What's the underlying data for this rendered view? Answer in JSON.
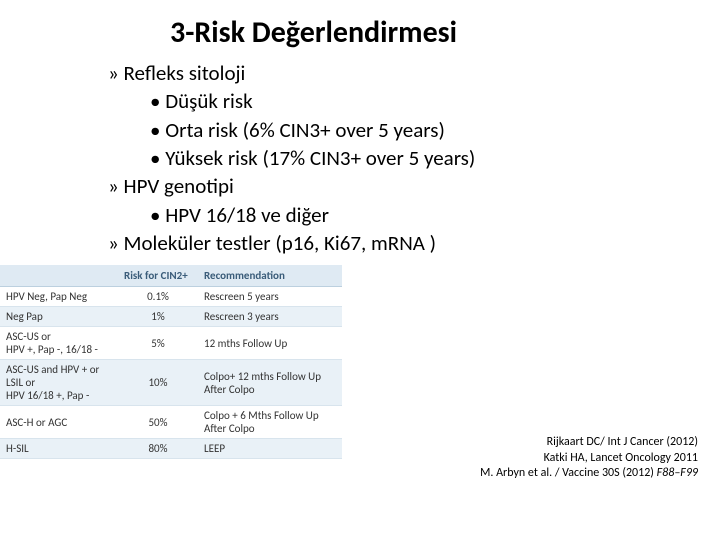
{
  "title": "3-Risk Değerlendirmesi",
  "bullets": {
    "a": "Refleks sitoloji",
    "a1": "Düşük risk",
    "a2": "Orta risk (6% CIN3+ over 5 years)",
    "a3": "Yüksek risk (17% CIN3+ over 5 years)",
    "b": "HPV genotipi",
    "b1": "HPV 16/18 ve diğer",
    "c": "Moleküler testler (p16, Ki67, mRNA )"
  },
  "table": {
    "headers": {
      "h1": "",
      "h2": "Risk for CIN2+",
      "h3": "Recommendation"
    },
    "rows": [
      {
        "c1": "HPV Neg, Pap Neg",
        "c2": "0.1%",
        "c3": "Rescreen 5 years"
      },
      {
        "c1": "Neg Pap",
        "c2": "1%",
        "c3": "Rescreen 3 years"
      },
      {
        "c1": "ASC-US or\nHPV +, Pap -, 16/18 -",
        "c2": "5%",
        "c3": "12 mths Follow Up"
      },
      {
        "c1": "ASC-US and HPV + or\nLSIL or\nHPV 16/18 +, Pap -",
        "c2": "10%",
        "c3": "Colpo+ 12 mths Follow Up After Colpo"
      },
      {
        "c1": "ASC-H or AGC",
        "c2": "50%",
        "c3": "Colpo + 6 Mths Follow Up After Colpo"
      },
      {
        "c1": "H-SIL",
        "c2": "80%",
        "c3": "LEEP"
      }
    ]
  },
  "refs": {
    "r1a": "Rijkaart DC/ Int J Cancer (2012)",
    "r2a": "Katki HA, Lancet Oncology 2011",
    "r3a": "M. Arbyn et al. / Vaccine 30S (2012) ",
    "r3b": "F88–F99"
  }
}
